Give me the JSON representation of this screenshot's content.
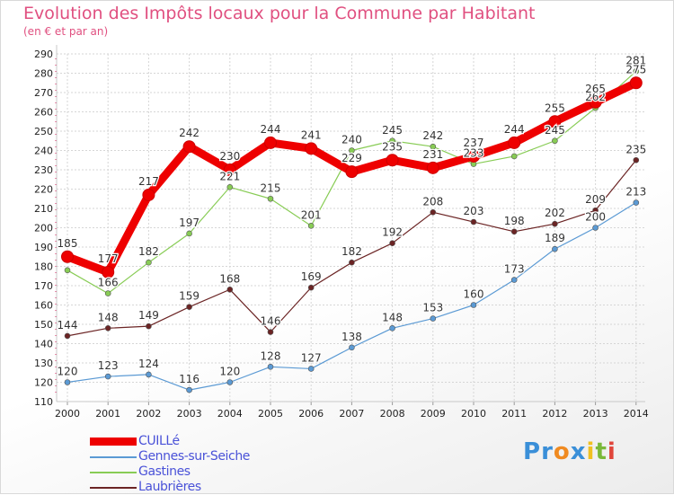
{
  "title": "Evolution des Impôts locaux pour la Commune par Habitant",
  "subtitle": "(en € et par an)",
  "logo": {
    "letters": [
      "P",
      "r",
      "o",
      "x",
      "i",
      "t",
      "i"
    ],
    "colors": [
      "#3a8fd8",
      "#3a8fd8",
      "#f08a20",
      "#3a8fd8",
      "#f0c020",
      "#7ab83a",
      "#e0453a"
    ]
  },
  "chart_data": {
    "type": "line",
    "title": "Evolution des Impôts locaux pour la Commune par Habitant",
    "ylabel": "(en € et par an)",
    "xlabel": "",
    "ylim": [
      110,
      290
    ],
    "yticks": [
      110,
      120,
      130,
      140,
      150,
      160,
      170,
      180,
      190,
      200,
      210,
      220,
      230,
      240,
      250,
      260,
      270,
      280,
      290
    ],
    "grid": true,
    "legend": "bottom-left",
    "categories": [
      "2000",
      "2001",
      "2002",
      "2003",
      "2004",
      "2005",
      "2006",
      "2007",
      "2008",
      "2009",
      "2010",
      "2011",
      "2012",
      "2013",
      "2014"
    ],
    "series": [
      {
        "name": "Gastines",
        "color": "#88cc55",
        "values": [
          178,
          166,
          182,
          197,
          221,
          215,
          201,
          240,
          245,
          242,
          233,
          237,
          245,
          262,
          281
        ],
        "labels": [
          "",
          "166",
          "182",
          "197",
          "221",
          "215",
          "201",
          "240",
          "245",
          "242",
          "233",
          "",
          "245",
          "262",
          "281"
        ]
      },
      {
        "name": "Laubrières",
        "color": "#6b2424",
        "values": [
          144,
          148,
          149,
          159,
          168,
          146,
          169,
          182,
          192,
          208,
          203,
          198,
          202,
          209,
          235
        ],
        "labels": [
          "144",
          "148",
          "149",
          "159",
          "168",
          "146",
          "169",
          "182",
          "192",
          "208",
          "203",
          "198",
          "202",
          "209",
          "235"
        ]
      },
      {
        "name": "Gennes-sur-Seiche",
        "color": "#5b9ad4",
        "values": [
          120,
          123,
          124,
          116,
          120,
          128,
          127,
          138,
          148,
          153,
          160,
          173,
          189,
          200,
          213
        ],
        "labels": [
          "120",
          "123",
          "124",
          "116",
          "120",
          "128",
          "127",
          "138",
          "148",
          "153",
          "160",
          "173",
          "189",
          "200",
          "213"
        ]
      },
      {
        "name": "CUILLé",
        "color": "#ee0000",
        "values": [
          185,
          177,
          217,
          242,
          230,
          244,
          241,
          229,
          235,
          231,
          237,
          244,
          255,
          265,
          275
        ],
        "labels": [
          "185",
          "177",
          "217",
          "242",
          "230",
          "244",
          "241",
          "229",
          "235",
          "231",
          "237",
          "244",
          "255",
          "265",
          "275"
        ]
      }
    ]
  },
  "legend": [
    {
      "name": "CUILLé",
      "color": "#ee0000"
    },
    {
      "name": "Gennes-sur-Seiche",
      "color": "#5b9ad4"
    },
    {
      "name": "Gastines",
      "color": "#88cc55"
    },
    {
      "name": "Laubrières",
      "color": "#6b2424"
    }
  ]
}
